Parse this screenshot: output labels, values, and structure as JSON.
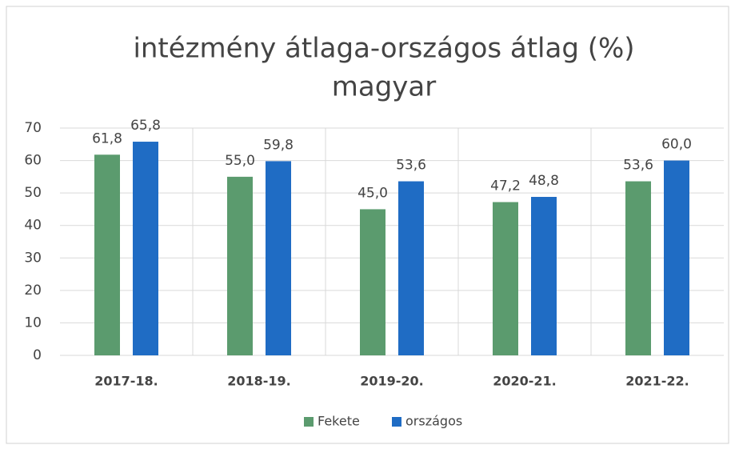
{
  "chart_data": {
    "type": "bar",
    "title": "intézmény átlaga-országos átlag (%)",
    "subtitle": "magyar",
    "categories": [
      "2017-18.",
      "2018-19.",
      "2019-20.",
      "2020-21.",
      "2021-22."
    ],
    "series": [
      {
        "name": "Fekete",
        "color": "#5b9b6e",
        "values": [
          61.8,
          55.0,
          45.0,
          47.2,
          53.6
        ],
        "value_labels": [
          "61,8",
          "55,0",
          "45,0",
          "47,2",
          "53,6"
        ]
      },
      {
        "name": "országos",
        "color": "#1f6cc4",
        "values": [
          65.8,
          59.8,
          53.6,
          48.8,
          60.0
        ],
        "value_labels": [
          "65,8",
          "59,8",
          "53,6",
          "48,8",
          "60,0"
        ]
      }
    ],
    "ylim": [
      0,
      70
    ],
    "yticks": [
      0,
      10,
      20,
      30,
      40,
      50,
      60,
      70
    ],
    "grid": true,
    "legend": "bottom"
  }
}
